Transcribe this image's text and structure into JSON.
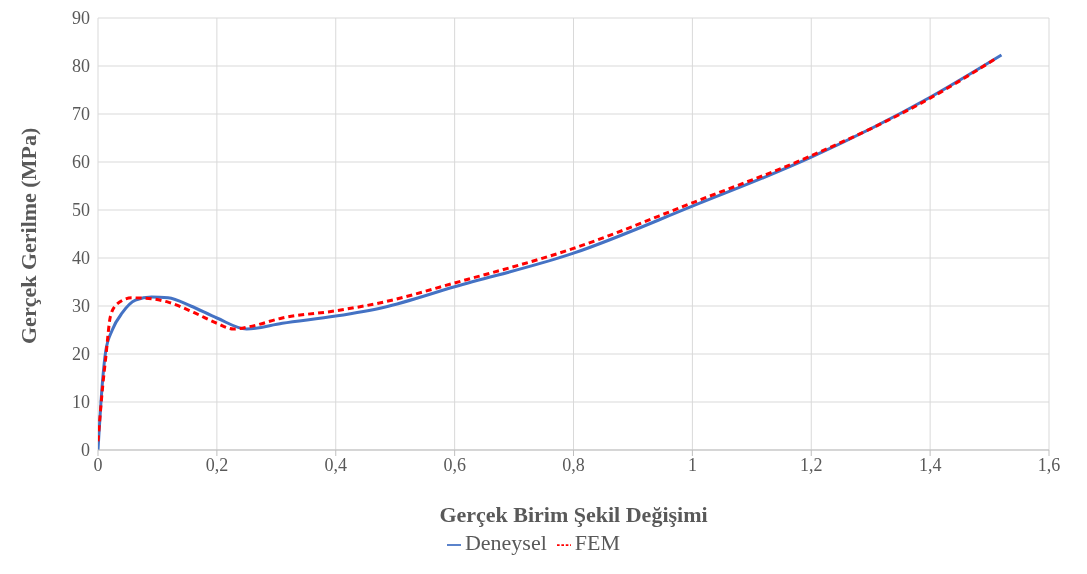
{
  "chart_data": {
    "type": "line",
    "xlabel": "Gerçek Birim Şekil Değişimi",
    "ylabel": "Gerçek Gerilme (MPa)",
    "xlim": [
      0,
      1.6
    ],
    "xticks": [
      {
        "value": 0,
        "label": "0"
      },
      {
        "value": 0.2,
        "label": "0,2"
      },
      {
        "value": 0.4,
        "label": "0,4"
      },
      {
        "value": 0.6,
        "label": "0,6"
      },
      {
        "value": 0.8,
        "label": "0,8"
      },
      {
        "value": 1,
        "label": "1"
      },
      {
        "value": 1.2,
        "label": "1,2"
      },
      {
        "value": 1.4,
        "label": "1,4"
      },
      {
        "value": 1.6,
        "label": "1,6"
      }
    ],
    "ylim": [
      0,
      90
    ],
    "yticks": [
      0,
      10,
      20,
      30,
      40,
      50,
      60,
      70,
      80,
      90
    ],
    "grid": true,
    "legend": "bottom",
    "marker": "none",
    "series": [
      {
        "name": "Deneysel",
        "color": "#4472c4",
        "line_style": "solid",
        "x": [
          0,
          0.008,
          0.013,
          0.024,
          0.041,
          0.063,
          0.09,
          0.118,
          0.156,
          0.2,
          0.25,
          0.31,
          0.4,
          0.48,
          0.6,
          0.8,
          1.0,
          1.2,
          1.4,
          1.52
        ],
        "values": [
          0,
          14.9,
          20.6,
          25,
          28.6,
          31.2,
          31.9,
          31.7,
          30,
          27.5,
          25.2,
          26.4,
          27.9,
          29.7,
          34,
          41,
          50.8,
          61,
          73.5,
          82.3
        ]
      },
      {
        "name": "FEM",
        "color": "#ff0000",
        "line_style": "dashed",
        "x": [
          0,
          0.008,
          0.013,
          0.021,
          0.032,
          0.057,
          0.09,
          0.118,
          0.162,
          0.2,
          0.228,
          0.255,
          0.31,
          0.4,
          0.48,
          0.6,
          0.8,
          1.0,
          1.2,
          1.4,
          1.51
        ],
        "values": [
          1.8,
          13.4,
          19.2,
          27.9,
          30.4,
          31.7,
          31.5,
          30.8,
          28.6,
          26.4,
          25.2,
          25.7,
          27.5,
          29,
          30.8,
          34.8,
          42,
          51.5,
          61.3,
          73.3,
          81.5
        ]
      }
    ]
  }
}
